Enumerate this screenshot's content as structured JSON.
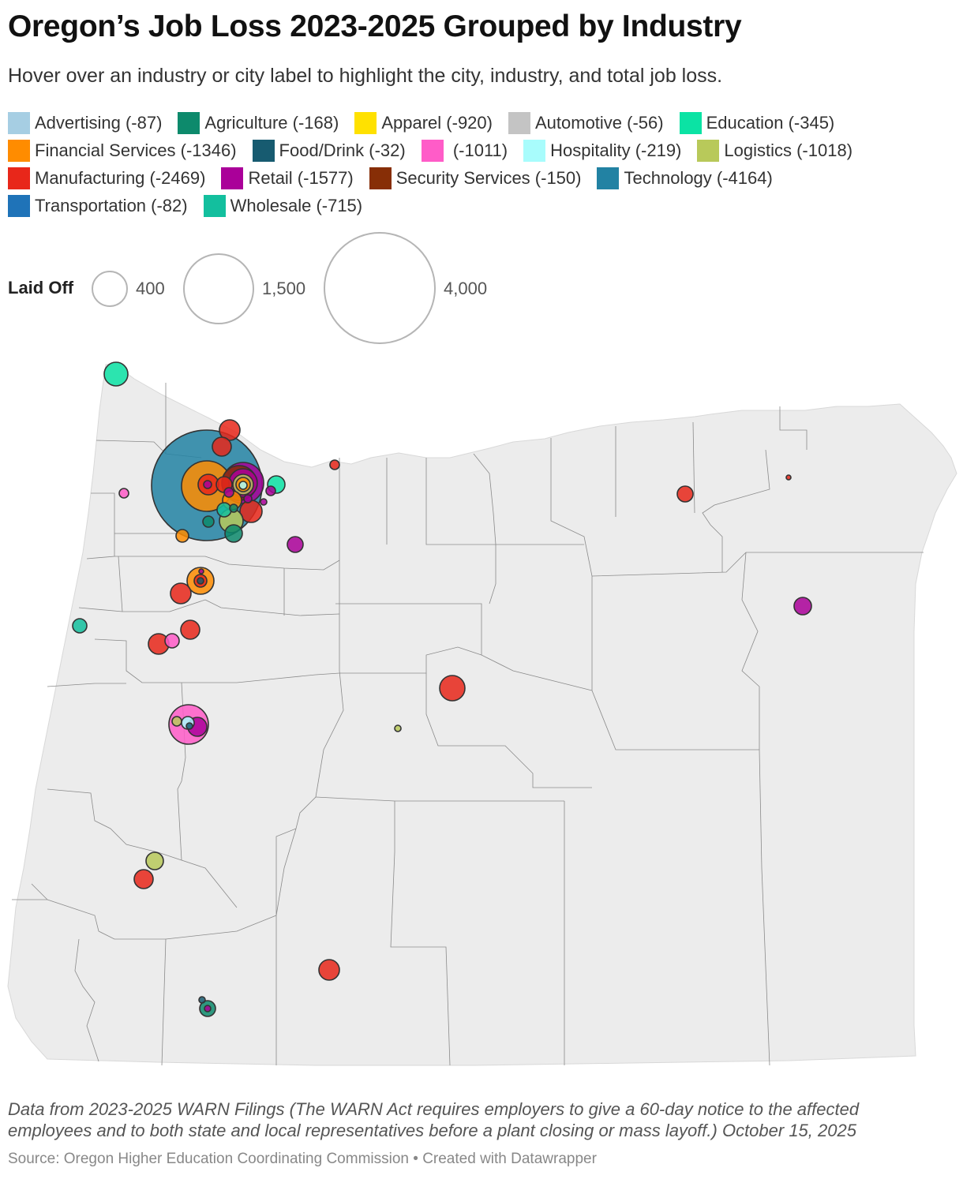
{
  "title": "Oregon’s Job Loss 2023-2025 Grouped by Industry",
  "subtitle": "Hover over an industry or city label to highlight the city, industry, and total job loss.",
  "legend": {
    "rows": [
      [
        {
          "label": "Advertising (-87)",
          "color": "#a6cee3"
        },
        {
          "label": "Agriculture (-168)",
          "color": "#0d8a6c"
        },
        {
          "label": "Apparel (-920)",
          "color": "#ffe100"
        },
        {
          "label": "Automotive (-56)",
          "color": "#c4c4c4"
        },
        {
          "label": "Education (-345)",
          "color": "#0be3a4"
        }
      ],
      [
        {
          "label": "Financial Services (-1346)",
          "color": "#ff8c00"
        },
        {
          "label": "Food/Drink (-32)",
          "color": "#175b70"
        },
        {
          "label": " (-1011)",
          "color": "#ff5cc8"
        },
        {
          "label": "Hospitality (-219)",
          "color": "#a8fcfc"
        },
        {
          "label": "Logistics (-1018)",
          "color": "#b8c95a"
        }
      ],
      [
        {
          "label": "Manufacturing (-2469)",
          "color": "#e8271a"
        },
        {
          "label": "Retail (-1577)",
          "color": "#aa0099"
        },
        {
          "label": "Security Services (-150)",
          "color": "#872e06"
        },
        {
          "label": "Technology (-4164)",
          "color": "#2282a3"
        }
      ],
      [
        {
          "label": "Transportation (-82)",
          "color": "#1f73b8"
        },
        {
          "label": "Wholesale (-715)",
          "color": "#13bf9e"
        }
      ]
    ]
  },
  "size_legend": {
    "title": "Laid Off",
    "values": [
      "400",
      "1,500",
      "4,000"
    ]
  },
  "note": "Data from 2023-2025 WARN Filings (The WARN Act requires employers to give a 60-day notice to the affected employees and to both state and local representatives before a plant closing or mass layoff.) October 15, 2025",
  "source": "Source: Oregon Higher Education Coordinating Commission • Created with Datawrapper"
}
